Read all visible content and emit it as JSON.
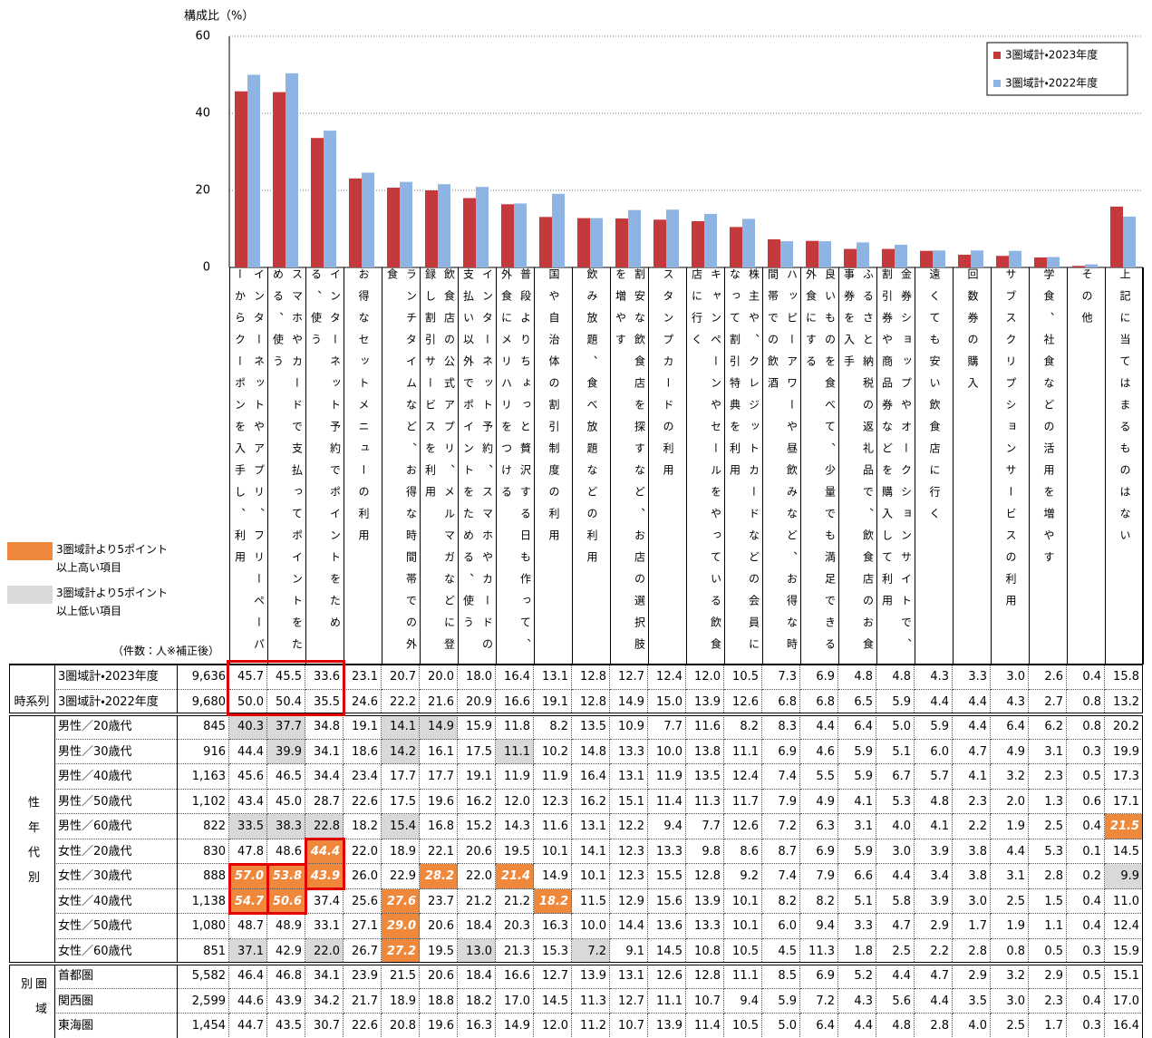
{
  "chart_data": {
    "type": "bar",
    "y_label": "構成比（%）",
    "ylim": [
      0,
      60
    ],
    "yticks": [
      0,
      20,
      40,
      60
    ],
    "grid": true,
    "legend": "upper right",
    "categories": [
      "インターネットやアプリ、フリーペーパーからクーポンを入手し、利用",
      "スマホやカードで支払ってポイントをためる、使う",
      "インターネット予約でポイントをためる、使う",
      "お得なセットメニューの利用",
      "ランチタイムなど、お得な時間帯での外食",
      "飲食店の公式アプリ、メルマガなどに登録し割引サービスを利用",
      "インターネット予約、スマホやカードの支払い以外でポイントをためる、使う",
      "普段よりちょっと贅沢する日も作って、外食にメリハリをつける",
      "国や自治体の割引制度の利用",
      "飲み放題、食べ放題などの利用",
      "割安な飲食店を探すなど、お店の選択肢を増やす",
      "スタンプカードの利用",
      "キャンペーンやセールをやっている飲食店に行く",
      "株主や、クレジットカードなどの会員になって割引特典を利用",
      "ハッピーアワーや昼飲みなど、お得な時間帯での飲酒",
      "良いものを食べて、少量でも満足できる外食にする",
      "ふるさと納税の返礼品で、飲食店のお食事券を入手",
      "金券ショップやオークションサイトで、割引券や商品券などを購入して利用",
      "遠くても安い飲食店に行く",
      "回数券の購入",
      "サブスクリプションサービスの利用",
      "学食、社食などの活用を増やす",
      "その他",
      "上記に当てはまるものはない"
    ],
    "series": [
      {
        "name": "3圏域計・2023年度",
        "count": "9,636",
        "color": "#c4393b",
        "values": [
          45.7,
          45.5,
          33.6,
          23.1,
          20.7,
          20.0,
          18.0,
          16.4,
          13.1,
          12.8,
          12.7,
          12.4,
          12.0,
          10.5,
          7.3,
          6.9,
          4.8,
          4.8,
          4.3,
          3.3,
          3.0,
          2.6,
          0.4,
          15.8
        ],
        "value_labels": [
          "45.7",
          "45.5",
          "33.6",
          "23.1",
          "20.7",
          "20.0",
          "18.0",
          "16.4",
          "13.1",
          "12.8",
          "12.7",
          "12.4",
          "12.0",
          "10.5",
          "7.3",
          "6.9",
          "4.8",
          "4.8",
          "4.3",
          "3.3",
          "3.0",
          "2.6",
          "0.4",
          "15.8"
        ]
      },
      {
        "name": "3圏域計・2022年度",
        "count": "9,680",
        "color": "#8db4e2",
        "values": [
          50.0,
          50.4,
          35.5,
          24.6,
          22.2,
          21.6,
          20.9,
          16.6,
          19.1,
          12.8,
          14.9,
          15.0,
          13.9,
          12.6,
          6.8,
          6.8,
          6.5,
          5.9,
          4.4,
          4.4,
          4.3,
          2.7,
          0.8,
          13.2
        ],
        "value_labels": [
          "50.0",
          "50.4",
          "35.5",
          "24.6",
          "22.2",
          "21.6",
          "20.9",
          "16.6",
          "19.1",
          "12.8",
          "14.9",
          "15.0",
          "13.9",
          "12.6",
          "6.8",
          "6.8",
          "6.5",
          "5.9",
          "4.4",
          "4.4",
          "4.3",
          "2.7",
          "0.8",
          "13.2"
        ]
      }
    ]
  },
  "table": {
    "count_caption": "（件数：人※補正後）",
    "time_label": "時系列",
    "highlight_styles": {
      "high": {
        "label": "3圏域計より5ポイント以上高い項目",
        "color": "#f0883c"
      },
      "low": {
        "label": "3圏域計より5ポイント以上低い項目",
        "color": "#d9d9d9"
      }
    },
    "groups": [
      {
        "label": "性年代別",
        "rows": [
          {
            "name": "男性／20歳代",
            "count": "845",
            "values": [
              "40.3",
              "37.7",
              "34.8",
              "19.1",
              "14.1",
              "14.9",
              "15.9",
              "11.8",
              "8.2",
              "13.5",
              "10.9",
              "7.7",
              "11.6",
              "8.2",
              "8.3",
              "4.4",
              "6.4",
              "5.0",
              "5.9",
              "4.4",
              "6.4",
              "6.2",
              "0.8",
              "20.2"
            ],
            "highlights": [
              "low",
              "low",
              null,
              null,
              "low",
              "low",
              null,
              null,
              null,
              null,
              null,
              null,
              null,
              null,
              null,
              null,
              null,
              null,
              null,
              null,
              null,
              null,
              null,
              null
            ]
          },
          {
            "name": "男性／30歳代",
            "count": "916",
            "values": [
              "44.4",
              "39.9",
              "34.1",
              "18.6",
              "14.2",
              "16.1",
              "17.5",
              "11.1",
              "10.2",
              "14.8",
              "13.3",
              "10.0",
              "13.8",
              "11.1",
              "6.9",
              "4.6",
              "5.9",
              "5.1",
              "6.0",
              "4.7",
              "4.9",
              "3.1",
              "0.3",
              "19.9"
            ],
            "highlights": [
              null,
              "low",
              null,
              null,
              "low",
              null,
              null,
              "low",
              null,
              null,
              null,
              null,
              null,
              null,
              null,
              null,
              null,
              null,
              null,
              null,
              null,
              null,
              null,
              null
            ]
          },
          {
            "name": "男性／40歳代",
            "count": "1,163",
            "values": [
              "45.6",
              "46.5",
              "34.4",
              "23.4",
              "17.7",
              "17.7",
              "19.1",
              "11.9",
              "11.9",
              "16.4",
              "13.1",
              "11.9",
              "13.5",
              "12.4",
              "7.4",
              "5.5",
              "5.9",
              "6.7",
              "5.7",
              "4.1",
              "3.2",
              "2.3",
              "0.5",
              "17.3"
            ]
          },
          {
            "name": "男性／50歳代",
            "count": "1,102",
            "values": [
              "43.4",
              "45.0",
              "28.7",
              "22.6",
              "17.5",
              "19.6",
              "16.2",
              "12.0",
              "12.3",
              "16.2",
              "15.1",
              "11.4",
              "11.3",
              "11.7",
              "7.9",
              "4.9",
              "4.1",
              "5.3",
              "4.8",
              "2.3",
              "2.0",
              "1.3",
              "0.6",
              "17.1"
            ]
          },
          {
            "name": "男性／60歳代",
            "count": "822",
            "values": [
              "33.5",
              "38.3",
              "22.8",
              "18.2",
              "15.4",
              "16.8",
              "15.2",
              "14.3",
              "11.6",
              "13.1",
              "12.2",
              "9.4",
              "7.7",
              "12.6",
              "7.2",
              "6.3",
              "3.1",
              "4.0",
              "4.1",
              "2.2",
              "1.9",
              "2.5",
              "0.4",
              "21.5"
            ],
            "highlights": [
              "low",
              "low",
              "low",
              null,
              "low",
              null,
              null,
              null,
              null,
              null,
              null,
              null,
              null,
              null,
              null,
              null,
              null,
              null,
              null,
              null,
              null,
              null,
              null,
              "high"
            ]
          },
          {
            "name": "女性／20歳代",
            "count": "830",
            "values": [
              "47.8",
              "48.6",
              "44.4",
              "22.0",
              "18.9",
              "22.1",
              "20.6",
              "19.5",
              "10.1",
              "14.1",
              "12.3",
              "13.3",
              "9.8",
              "8.6",
              "8.7",
              "6.9",
              "5.9",
              "3.0",
              "3.9",
              "3.8",
              "4.4",
              "5.3",
              "0.1",
              "14.5"
            ],
            "highlights": [
              null,
              null,
              "high",
              null,
              null,
              null,
              null,
              null,
              null,
              null,
              null,
              null,
              null,
              null,
              null,
              null,
              null,
              null,
              null,
              null,
              null,
              null,
              null,
              null
            ]
          },
          {
            "name": "女性／30歳代",
            "count": "888",
            "values": [
              "57.0",
              "53.8",
              "43.9",
              "26.0",
              "22.9",
              "28.2",
              "22.0",
              "21.4",
              "14.9",
              "10.1",
              "12.3",
              "15.5",
              "12.8",
              "9.2",
              "7.4",
              "7.9",
              "6.6",
              "4.4",
              "3.4",
              "3.8",
              "3.1",
              "2.8",
              "0.2",
              "9.9"
            ],
            "highlights": [
              "high",
              "high",
              "high",
              null,
              null,
              "high",
              null,
              "high",
              null,
              null,
              null,
              null,
              null,
              null,
              null,
              null,
              null,
              null,
              null,
              null,
              null,
              null,
              null,
              "low"
            ]
          },
          {
            "name": "女性／40歳代",
            "count": "1,138",
            "values": [
              "54.7",
              "50.6",
              "37.4",
              "25.6",
              "27.6",
              "23.7",
              "21.2",
              "21.2",
              "18.2",
              "11.5",
              "12.9",
              "15.6",
              "13.9",
              "10.1",
              "8.2",
              "8.2",
              "5.1",
              "5.8",
              "3.9",
              "3.0",
              "2.5",
              "1.5",
              "0.4",
              "11.0"
            ],
            "highlights": [
              "high",
              "high",
              null,
              null,
              "high",
              null,
              null,
              null,
              "high",
              null,
              null,
              null,
              null,
              null,
              null,
              null,
              null,
              null,
              null,
              null,
              null,
              null,
              null,
              null
            ]
          },
          {
            "name": "女性／50歳代",
            "count": "1,080",
            "values": [
              "48.7",
              "48.9",
              "33.1",
              "27.1",
              "29.0",
              "20.6",
              "18.4",
              "20.3",
              "16.3",
              "10.0",
              "14.4",
              "13.6",
              "13.3",
              "10.1",
              "6.0",
              "9.4",
              "3.3",
              "4.7",
              "2.9",
              "1.7",
              "1.9",
              "1.1",
              "0.4",
              "12.4"
            ],
            "highlights": [
              null,
              null,
              null,
              null,
              "high",
              null,
              null,
              null,
              null,
              null,
              null,
              null,
              null,
              null,
              null,
              null,
              null,
              null,
              null,
              null,
              null,
              null,
              null,
              null
            ]
          },
          {
            "name": "女性／60歳代",
            "count": "851",
            "values": [
              "37.1",
              "42.9",
              "22.0",
              "26.7",
              "27.2",
              "19.5",
              "13.0",
              "21.3",
              "15.3",
              "7.2",
              "9.1",
              "14.5",
              "10.8",
              "10.5",
              "4.5",
              "11.3",
              "1.8",
              "2.5",
              "2.2",
              "2.8",
              "0.8",
              "0.5",
              "0.3",
              "15.9"
            ],
            "highlights": [
              "low",
              null,
              "low",
              null,
              "high",
              null,
              "low",
              null,
              null,
              "low",
              null,
              null,
              null,
              null,
              null,
              null,
              null,
              null,
              null,
              null,
              null,
              null,
              null,
              null
            ]
          }
        ]
      },
      {
        "label": "圏域別",
        "rows": [
          {
            "name": "首都圏",
            "count": "5,582",
            "values": [
              "46.4",
              "46.8",
              "34.1",
              "23.9",
              "21.5",
              "20.6",
              "18.4",
              "16.6",
              "12.7",
              "13.9",
              "13.1",
              "12.6",
              "12.8",
              "11.1",
              "8.5",
              "6.9",
              "5.2",
              "4.4",
              "4.7",
              "2.9",
              "3.2",
              "2.9",
              "0.5",
              "15.1"
            ]
          },
          {
            "name": "関西圏",
            "count": "2,599",
            "values": [
              "44.6",
              "43.9",
              "34.2",
              "21.7",
              "18.9",
              "18.8",
              "18.2",
              "17.0",
              "14.5",
              "11.3",
              "12.7",
              "11.1",
              "10.7",
              "9.4",
              "5.9",
              "7.2",
              "4.3",
              "5.6",
              "4.4",
              "3.5",
              "3.0",
              "2.3",
              "0.4",
              "17.0"
            ]
          },
          {
            "name": "東海圏",
            "count": "1,454",
            "values": [
              "44.7",
              "43.5",
              "30.7",
              "22.6",
              "20.8",
              "19.6",
              "16.3",
              "14.9",
              "12.0",
              "11.2",
              "10.7",
              "13.9",
              "11.4",
              "10.5",
              "5.0",
              "6.4",
              "4.4",
              "4.8",
              "2.8",
              "4.0",
              "2.5",
              "1.7",
              "0.3",
              "16.4"
            ]
          }
        ]
      }
    ]
  }
}
